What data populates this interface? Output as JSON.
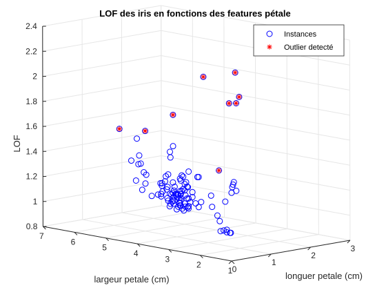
{
  "chart_data": {
    "type": "scatter",
    "title": "LOF des iris en fonctions des features pétale",
    "xlabel": "longuer petale (cm)",
    "ylabel": "largeur petale (cm)",
    "zlabel": "LOF",
    "xlim": [
      0,
      3
    ],
    "ylim": [
      1,
      7
    ],
    "zlim": [
      0.8,
      2.4
    ],
    "xticks": [
      "0",
      "1",
      "2",
      "3"
    ],
    "yticks": [
      "1",
      "2",
      "3",
      "4",
      "5",
      "6",
      "7"
    ],
    "zticks": [
      "0.8",
      "1",
      "1.2",
      "1.4",
      "1.6",
      "1.8",
      "2",
      "2.2",
      "2.4"
    ],
    "grid": true,
    "legend_position": "top-right",
    "series": [
      {
        "name": "Instances",
        "marker": "circle",
        "color": "#0000ff",
        "points": [
          [
            0.2,
            1.4,
            1.0
          ],
          [
            0.2,
            1.3,
            1.0
          ],
          [
            0.2,
            1.5,
            1.01
          ],
          [
            0.2,
            1.6,
            1.0
          ],
          [
            0.3,
            1.4,
            0.99
          ],
          [
            0.2,
            1.4,
            1.02
          ],
          [
            0.1,
            1.5,
            1.09
          ],
          [
            0.2,
            1.7,
            1.12
          ],
          [
            0.4,
            1.7,
            1.22
          ],
          [
            0.1,
            1.1,
            1.38
          ],
          [
            0.2,
            1.2,
            1.39
          ],
          [
            0.2,
            1.9,
            1.27
          ],
          [
            0.4,
            1.5,
            1.3
          ],
          [
            0.3,
            1.3,
            1.4
          ],
          [
            0.6,
            1.6,
            1.3
          ],
          [
            1.4,
            4.7,
            1.38
          ],
          [
            1.5,
            4.5,
            1.2
          ],
          [
            1.5,
            4.9,
            1.23
          ],
          [
            1.3,
            4.0,
            1.03
          ],
          [
            1.5,
            4.6,
            1.06
          ],
          [
            1.3,
            4.5,
            1.05
          ],
          [
            1.6,
            4.7,
            1.07
          ],
          [
            1.0,
            3.3,
            1.31
          ],
          [
            1.3,
            4.6,
            1.0
          ],
          [
            1.4,
            3.9,
            1.05
          ],
          [
            1.0,
            3.5,
            1.14
          ],
          [
            1.5,
            4.2,
            1.04
          ],
          [
            1.0,
            4.0,
            1.02
          ],
          [
            1.4,
            4.7,
            1.01
          ],
          [
            1.3,
            3.6,
            1.08
          ],
          [
            1.4,
            4.4,
            1.03
          ],
          [
            1.5,
            4.5,
            1.0
          ],
          [
            1.0,
            4.1,
            1.06
          ],
          [
            1.5,
            4.5,
            1.04
          ],
          [
            1.1,
            3.9,
            1.01
          ],
          [
            1.8,
            4.8,
            1.1
          ],
          [
            1.3,
            4.0,
            1.09
          ],
          [
            1.5,
            4.9,
            1.02
          ],
          [
            1.2,
            4.7,
            1.12
          ],
          [
            1.3,
            4.3,
            1.08
          ],
          [
            1.4,
            4.4,
            1.01
          ],
          [
            1.4,
            4.8,
            1.05
          ],
          [
            1.7,
            5.0,
            1.15
          ],
          [
            1.5,
            4.5,
            1.06
          ],
          [
            1.0,
            3.5,
            1.18
          ],
          [
            1.1,
            3.8,
            1.11
          ],
          [
            1.0,
            3.7,
            1.25
          ],
          [
            1.2,
            3.9,
            1.03
          ],
          [
            1.6,
            5.1,
            1.2
          ],
          [
            1.5,
            4.5,
            1.09
          ],
          [
            1.6,
            4.5,
            1.01
          ],
          [
            1.5,
            4.7,
            1.03
          ],
          [
            1.3,
            4.4,
            1.1
          ],
          [
            1.3,
            4.1,
            1.02
          ],
          [
            1.3,
            4.0,
            1.01
          ],
          [
            1.2,
            4.4,
            1.05
          ],
          [
            1.4,
            4.6,
            1.07
          ],
          [
            1.2,
            4.0,
            1.16
          ],
          [
            1.0,
            3.3,
            1.07
          ],
          [
            1.3,
            4.2,
            1.0
          ],
          [
            1.2,
            4.2,
            1.02
          ],
          [
            1.3,
            4.3,
            1.04
          ],
          [
            1.1,
            3.0,
            1.08
          ],
          [
            1.3,
            4.1,
            1.11
          ],
          [
            2.5,
            6.0,
            1.35
          ],
          [
            1.9,
            5.1,
            1.04
          ],
          [
            2.1,
            5.9,
            1.08
          ],
          [
            1.8,
            5.6,
            1.02
          ],
          [
            2.2,
            5.8,
            1.05
          ],
          [
            2.1,
            6.6,
            1.2
          ],
          [
            1.7,
            4.5,
            1.26
          ],
          [
            1.8,
            6.3,
            1.1
          ],
          [
            1.8,
            5.8,
            1.0
          ],
          [
            2.5,
            6.1,
            1.3
          ],
          [
            2.0,
            5.1,
            1.06
          ],
          [
            1.9,
            5.3,
            1.03
          ],
          [
            2.1,
            5.5,
            1.02
          ],
          [
            2.0,
            5.0,
            1.12
          ],
          [
            2.4,
            5.1,
            1.15
          ],
          [
            2.3,
            5.3,
            1.07
          ],
          [
            1.8,
            5.5,
            1.01
          ],
          [
            2.2,
            6.7,
            1.26
          ],
          [
            2.3,
            6.9,
            1.38
          ],
          [
            1.5,
            5.0,
            1.17
          ],
          [
            2.3,
            5.7,
            1.05
          ],
          [
            2.0,
            4.9,
            1.1
          ],
          [
            2.0,
            6.7,
            1.23
          ],
          [
            1.8,
            4.9,
            1.08
          ],
          [
            2.1,
            5.7,
            1.04
          ],
          [
            1.8,
            6.0,
            1.09
          ],
          [
            1.8,
            4.8,
            1.2
          ],
          [
            1.8,
            4.9,
            1.18
          ],
          [
            2.1,
            5.6,
            1.01
          ],
          [
            1.6,
            5.8,
            1.2
          ],
          [
            1.9,
            6.1,
            1.15
          ],
          [
            2.0,
            6.4,
            1.22
          ],
          [
            2.2,
            5.6,
            1.03
          ],
          [
            1.5,
            5.1,
            1.13
          ],
          [
            1.4,
            5.6,
            1.08
          ],
          [
            2.3,
            6.1,
            1.06
          ],
          [
            2.4,
            5.6,
            1.14
          ],
          [
            1.8,
            5.5,
            1.03
          ],
          [
            1.8,
            4.8,
            1.1
          ],
          [
            2.1,
            5.4,
            1.02
          ]
        ]
      },
      {
        "name": "Outlier detecté",
        "marker": "asterisk",
        "color": "#ff0000",
        "points": [
          [
            0.1,
            1.0,
            2.3
          ],
          [
            0.2,
            1.0,
            2.1
          ],
          [
            0.5,
            1.7,
            2.0
          ],
          [
            0.6,
            1.6,
            2.0
          ],
          [
            0.4,
            1.9,
            1.46
          ],
          [
            1.6,
            3.9,
            2.05
          ],
          [
            1.0,
            5.0,
            1.6
          ],
          [
            1.7,
            6.7,
            1.5
          ],
          [
            2.5,
            6.0,
            1.6
          ]
        ]
      }
    ]
  }
}
